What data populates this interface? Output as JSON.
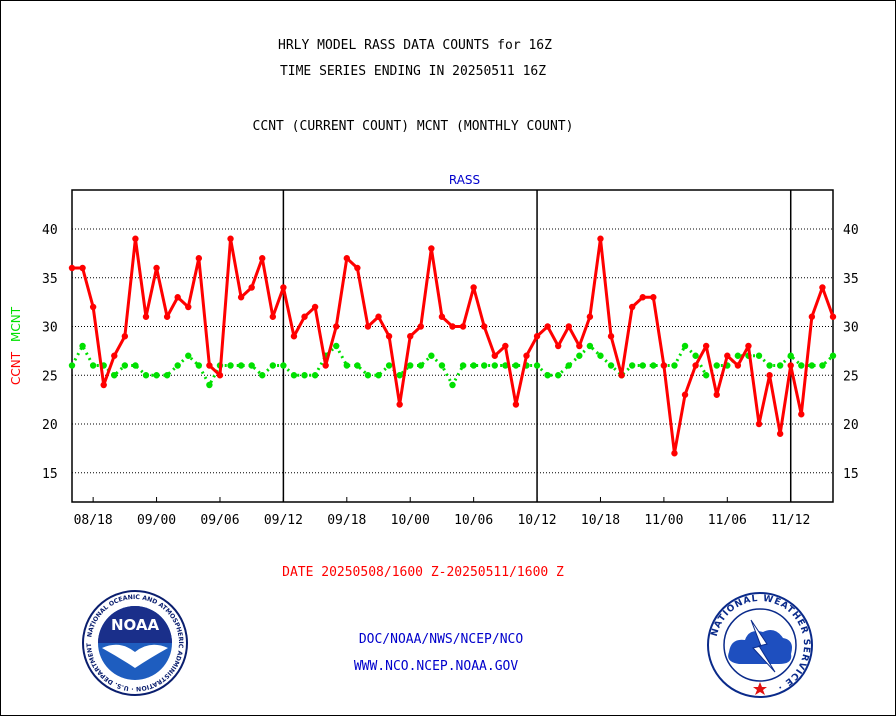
{
  "header": {
    "title_line1": "HRLY MODEL RASS DATA COUNTS for 16Z",
    "title_line2": "TIME SERIES ENDING IN 20250511 16Z",
    "subtitle": "CCNT (CURRENT COUNT) MCNT (MONTHLY COUNT)"
  },
  "footer": {
    "date_range": "DATE 20250508/1600 Z-20250511/1600 Z",
    "org": "DOC/NOAA/NWS/NCEP/NCO",
    "url": "WWW.NCO.NCEP.NOAA.GOV"
  },
  "logos": {
    "noaa_center": "NOAA",
    "noaa_ring": "NATIONAL OCEANIC AND ATMOSPHERIC ADMINISTRATION · U.S. DEPARTMENT OF COMMERCE ·",
    "nws_ring": "NATIONAL WEATHER SERVICE ·"
  },
  "colors": {
    "ccnt": "#ff0000",
    "mcnt": "#00e000",
    "panel_label": "#0000cc",
    "footer_red": "#ff0000",
    "footer_blue": "#0000cc"
  },
  "chart_data": {
    "type": "line",
    "panel_label": "RASS",
    "ylabel_ccnt": "CCNT",
    "ylabel_mcnt": "MCNT",
    "ylim": [
      12,
      44
    ],
    "yticks": [
      15,
      20,
      25,
      30,
      35,
      40
    ],
    "x_tick_labels": [
      "08/18",
      "09/00",
      "09/06",
      "09/12",
      "09/18",
      "10/00",
      "10/06",
      "10/12",
      "10/18",
      "11/00",
      "11/06",
      "11/12"
    ],
    "x_tick_hours": [
      2,
      8,
      14,
      20,
      26,
      32,
      38,
      44,
      50,
      56,
      62,
      68
    ],
    "day_boundary_hours": [
      20,
      44,
      68
    ],
    "x_range_hours": [
      0,
      72
    ],
    "x": [
      0,
      1,
      2,
      3,
      4,
      5,
      6,
      7,
      8,
      9,
      10,
      11,
      12,
      13,
      14,
      15,
      16,
      17,
      18,
      19,
      20,
      21,
      22,
      23,
      24,
      25,
      26,
      27,
      28,
      29,
      30,
      31,
      32,
      33,
      34,
      35,
      36,
      37,
      38,
      39,
      40,
      41,
      42,
      43,
      44,
      45,
      46,
      47,
      48,
      49,
      50,
      51,
      52,
      53,
      54,
      55,
      56,
      57,
      58,
      59,
      60,
      61,
      62,
      63,
      64,
      65,
      66,
      67,
      68,
      69,
      70,
      71,
      72
    ],
    "series": [
      {
        "name": "CCNT",
        "values": [
          36,
          36,
          32,
          24,
          27,
          29,
          39,
          31,
          36,
          31,
          33,
          32,
          37,
          26,
          25,
          39,
          33,
          34,
          37,
          31,
          34,
          29,
          31,
          32,
          26,
          30,
          37,
          36,
          30,
          31,
          29,
          22,
          29,
          30,
          38,
          31,
          30,
          30,
          34,
          30,
          27,
          28,
          22,
          27,
          29,
          30,
          28,
          30,
          28,
          31,
          39,
          29,
          25,
          32,
          33,
          33,
          26,
          17,
          23,
          26,
          28,
          23,
          27,
          26,
          28,
          20,
          25,
          19,
          26,
          21,
          31,
          34,
          31
        ]
      },
      {
        "name": "MCNT",
        "values": [
          26,
          28,
          26,
          26,
          25,
          26,
          26,
          25,
          25,
          25,
          26,
          27,
          26,
          24,
          26,
          26,
          26,
          26,
          25,
          26,
          26,
          25,
          25,
          25,
          27,
          28,
          26,
          26,
          25,
          25,
          26,
          25,
          26,
          26,
          27,
          26,
          24,
          26,
          26,
          26,
          26,
          26,
          26,
          26,
          26,
          25,
          25,
          26,
          27,
          28,
          27,
          26,
          25,
          26,
          26,
          26,
          26,
          26,
          28,
          27,
          25,
          26,
          26,
          27,
          27,
          27,
          26,
          26,
          27,
          26,
          26,
          26,
          27
        ]
      }
    ]
  }
}
